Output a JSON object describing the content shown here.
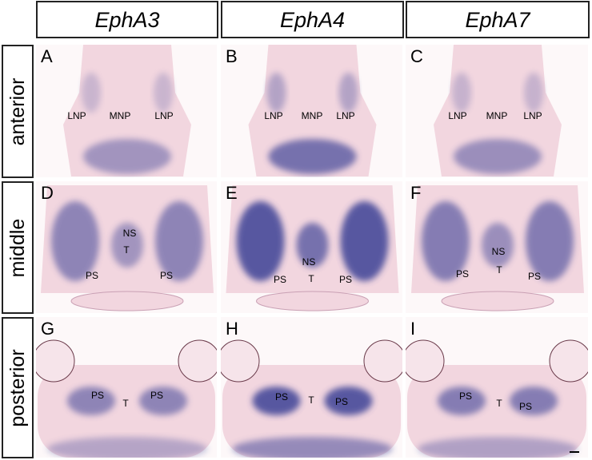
{
  "columns": [
    "EphA3",
    "EphA4",
    "EphA7"
  ],
  "rows": [
    "anterior",
    "middle",
    "posterior"
  ],
  "panels": [
    {
      "letter": "A",
      "labels": [
        "LNP",
        "MNP",
        "LNP"
      ]
    },
    {
      "letter": "B",
      "labels": [
        "LNP",
        "MNP",
        "LNP"
      ]
    },
    {
      "letter": "C",
      "labels": [
        "LNP",
        "MNP",
        "LNP"
      ]
    },
    {
      "letter": "D",
      "labels": [
        "NS",
        "T",
        "PS",
        "PS"
      ]
    },
    {
      "letter": "E",
      "labels": [
        "NS",
        "PS",
        "T",
        "PS"
      ]
    },
    {
      "letter": "F",
      "labels": [
        "NS",
        "PS",
        "T",
        "PS"
      ]
    },
    {
      "letter": "G",
      "labels": [
        "PS",
        "T",
        "PS"
      ]
    },
    {
      "letter": "H",
      "labels": [
        "PS",
        "T",
        "PS"
      ]
    },
    {
      "letter": "I",
      "labels": [
        "PS",
        "T",
        "PS"
      ]
    }
  ]
}
